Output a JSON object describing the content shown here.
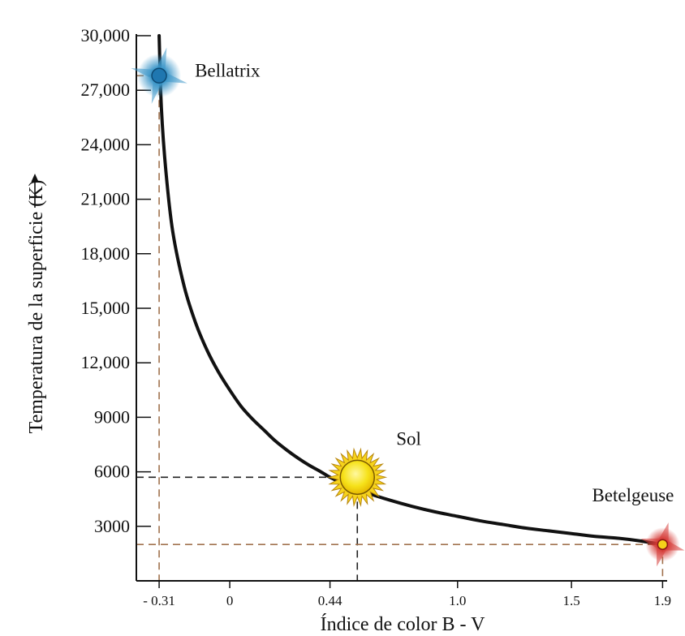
{
  "chart_data": {
    "type": "line",
    "xlabel": "Índice de color B - V",
    "ylabel": "Temperatura de la superficie (K)",
    "xlim": [
      -0.41,
      1.92
    ],
    "ylim": [
      0,
      30000
    ],
    "x_ticks": [
      {
        "value": -0.31,
        "label": "- 0.31"
      },
      {
        "value": 0,
        "label": "0"
      },
      {
        "value": 0.44,
        "label": "0.44"
      },
      {
        "value": 1.0,
        "label": "1.0"
      },
      {
        "value": 1.5,
        "label": "1.5"
      },
      {
        "value": 1.9,
        "label": "1.9"
      }
    ],
    "y_ticks": [
      {
        "value": 3000,
        "label": "3000"
      },
      {
        "value": 6000,
        "label": "6000"
      },
      {
        "value": 9000,
        "label": "9000"
      },
      {
        "value": 12000,
        "label": "12,000"
      },
      {
        "value": 15000,
        "label": "15,000"
      },
      {
        "value": 18000,
        "label": "18,000"
      },
      {
        "value": 21000,
        "label": "21,000"
      },
      {
        "value": 24000,
        "label": "24,000"
      },
      {
        "value": 27000,
        "label": "27,000"
      },
      {
        "value": 30000,
        "label": "30,000"
      }
    ],
    "series": [
      {
        "x": [
          -0.31,
          -0.3,
          -0.28,
          -0.25,
          -0.2,
          -0.15,
          -0.1,
          -0.05,
          0.0,
          0.05,
          0.1,
          0.15,
          0.2,
          0.25,
          0.3,
          0.35,
          0.4,
          0.44,
          0.5,
          0.55,
          0.6,
          0.7,
          0.8,
          0.9,
          1.0,
          1.1,
          1.2,
          1.3,
          1.4,
          1.5,
          1.6,
          1.7,
          1.8,
          1.9
        ],
        "y": [
          30000,
          26000,
          22500,
          19200,
          16200,
          14200,
          12700,
          11500,
          10500,
          9600,
          8900,
          8300,
          7700,
          7200,
          6750,
          6350,
          6000,
          5700,
          5350,
          5100,
          4850,
          4450,
          4100,
          3800,
          3550,
          3300,
          3100,
          2900,
          2750,
          2600,
          2450,
          2350,
          2200,
          2000
        ]
      }
    ],
    "stars": [
      {
        "name": "Bellatrix",
        "x": -0.31,
        "y": 27800,
        "color": "#3a95c8"
      },
      {
        "name": "Sol",
        "x": 0.56,
        "y": 5700,
        "color": "#f4d41c"
      },
      {
        "name": "Betelgeuse",
        "x": 1.9,
        "y": 2000,
        "color": "#d63a36"
      }
    ],
    "grid": false,
    "colors": {
      "curve": "#111111",
      "brown_guides": "#a0724e",
      "black_guides": "#222222"
    }
  }
}
